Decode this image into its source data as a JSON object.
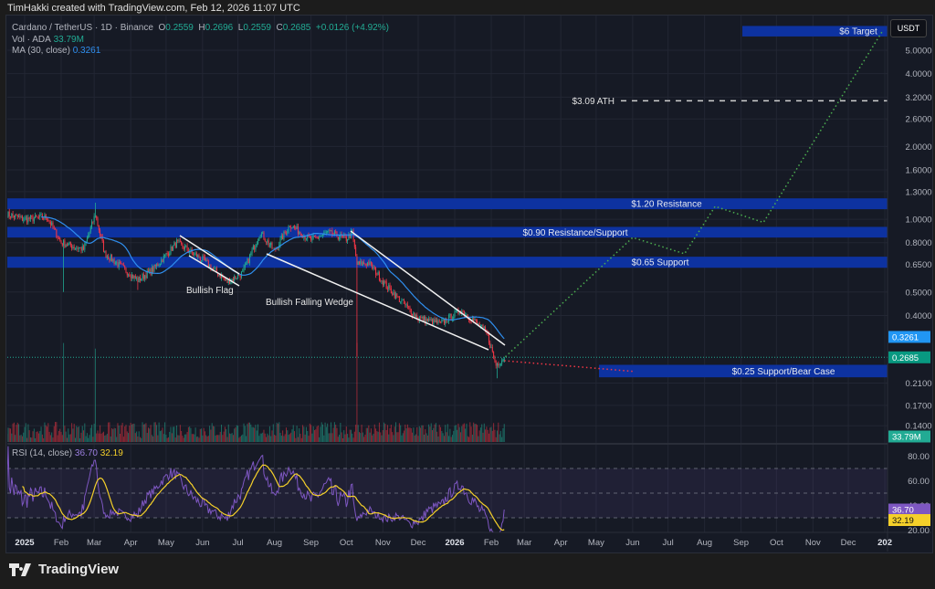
{
  "header": {
    "credit": "TimHakki created with TradingView.com, Feb 12, 2026 11:07 UTC"
  },
  "legend": {
    "symbol": "Cardano / TetherUS · 1D · Binance",
    "o_label": "O",
    "o": "0.2559",
    "h_label": "H",
    "h": "0.2696",
    "l_label": "L",
    "l": "0.2559",
    "c_label": "C",
    "c": "0.2685",
    "change": "+0.0126 (+4.92%)",
    "vol_label": "Vol · ADA",
    "vol": "33.79M",
    "ma_label": "MA (30, close)",
    "ma": "0.3261",
    "rsi_label": "RSI (14, close)",
    "rsi": "36.70",
    "rsi_ma": "32.19"
  },
  "currency_button": "USDT",
  "footer": {
    "brand": "TradingView"
  },
  "colors": {
    "up": "#22ab94",
    "down": "#f23645",
    "ma": "#2f8ff0",
    "zone": "#0d32a0",
    "rsi": "#7e57c2",
    "rsi_ma": "#f5d02a",
    "bull_path": "#4caf50",
    "bear_path": "#f23645"
  },
  "chart_data": {
    "type": "candlestick",
    "scale": "log",
    "ylim": [
      0.13,
      6.2
    ],
    "y_ticks": [
      "5.0000",
      "4.0000",
      "3.2000",
      "2.6000",
      "2.0000",
      "1.6000",
      "1.3000",
      "1.0000",
      "0.8000",
      "0.6500",
      "0.5000",
      "0.4000",
      "0.2100",
      "0.1700",
      "0.1400"
    ],
    "x_ticks": [
      "2025",
      "Feb",
      "Mar",
      "Apr",
      "May",
      "Jun",
      "Jul",
      "Aug",
      "Sep",
      "Oct",
      "Nov",
      "Dec",
      "2026",
      "Feb",
      "Mar",
      "Apr",
      "May",
      "Jun",
      "Jul",
      "Aug",
      "Sep",
      "Oct",
      "Nov",
      "Dec",
      "202"
    ],
    "price_tags": {
      "ma": "0.3261",
      "last": "0.2685",
      "volume": "33.79M",
      "rsi": "36.70",
      "rsi_ma": "32.19"
    },
    "price_path": [
      [
        "2024-12-17",
        1.05
      ],
      [
        "2025-01-01",
        1.0
      ],
      [
        "2025-01-20",
        1.02
      ],
      [
        "2025-02-01",
        0.8
      ],
      [
        "2025-02-20",
        0.75
      ],
      [
        "2025-03-02",
        1.05
      ],
      [
        "2025-03-10",
        0.72
      ],
      [
        "2025-04-07",
        0.56
      ],
      [
        "2025-04-20",
        0.62
      ],
      [
        "2025-05-10",
        0.8
      ],
      [
        "2025-06-01",
        0.68
      ],
      [
        "2025-06-22",
        0.55
      ],
      [
        "2025-07-05",
        0.6
      ],
      [
        "2025-07-20",
        0.88
      ],
      [
        "2025-08-01",
        0.74
      ],
      [
        "2025-08-14",
        0.95
      ],
      [
        "2025-09-01",
        0.82
      ],
      [
        "2025-09-15",
        0.88
      ],
      [
        "2025-10-01",
        0.83
      ],
      [
        "2025-10-06",
        0.88
      ],
      [
        "2025-10-10",
        0.65
      ],
      [
        "2025-10-20",
        0.66
      ],
      [
        "2025-11-04",
        0.53
      ],
      [
        "2025-11-20",
        0.44
      ],
      [
        "2025-12-01",
        0.39
      ],
      [
        "2025-12-20",
        0.37
      ],
      [
        "2026-01-06",
        0.42
      ],
      [
        "2026-01-15",
        0.39
      ],
      [
        "2026-01-28",
        0.34
      ],
      [
        "2026-02-05",
        0.25
      ],
      [
        "2026-02-12",
        0.2685
      ]
    ],
    "rsi": {
      "upper": 70,
      "middle": 50,
      "lower": 30,
      "y_ticks": [
        "80.00",
        "60.00",
        "40.00",
        "20.00"
      ]
    },
    "annotations": {
      "zones": [
        {
          "label": "$6 Target",
          "low": 5.7,
          "high": 6.3
        },
        {
          "label": "$1.20 Resistance",
          "low": 1.1,
          "high": 1.22
        },
        {
          "label": "$0.90 Resistance/Support",
          "low": 0.84,
          "high": 0.93
        },
        {
          "label": "$0.65 Support",
          "low": 0.63,
          "high": 0.7
        },
        {
          "label": "$0.25 Support/Bear Case",
          "low": 0.222,
          "high": 0.25
        }
      ],
      "ath": {
        "label": "$3.09 ATH",
        "price": 3.09
      },
      "patterns": [
        "Bullish Flag",
        "Bullish Falling Wedge"
      ],
      "bull_path": [
        [
          "2026-02-13",
          0.27
        ],
        [
          "2026-06-01",
          0.84
        ],
        [
          "2026-07-15",
          0.72
        ],
        [
          "2026-08-10",
          1.13
        ],
        [
          "2026-09-20",
          0.97
        ],
        [
          "2026-12-30",
          6.0
        ]
      ],
      "bear_path": [
        [
          "2026-02-12",
          0.26
        ],
        [
          "2026-06-01",
          0.235
        ]
      ]
    }
  }
}
